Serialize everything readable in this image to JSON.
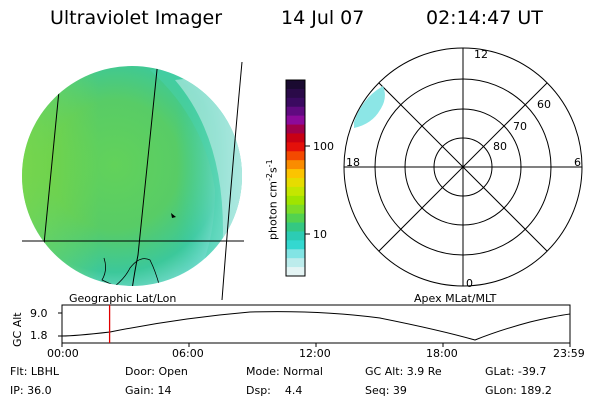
{
  "header": {
    "instrument": "Ultraviolet Imager",
    "date": "14 Jul 07",
    "time": "02:14:47 UT"
  },
  "colorbar": {
    "unit_label": "photon cm",
    "unit_exp": "-2",
    "unit_s": "s",
    "unit_s_exp": "-1",
    "tick_100": "100",
    "tick_10": "10",
    "colors": [
      "#1a0a30",
      "#2a0a48",
      "#3a0a60",
      "#600a80",
      "#8c0a9a",
      "#a0004a",
      "#c80014",
      "#e4100a",
      "#f44a00",
      "#fa8c00",
      "#fcc400",
      "#e6dc00",
      "#c4e600",
      "#a0e400",
      "#7cdc28",
      "#52d250",
      "#34c882",
      "#2cccb4",
      "#34d8d0",
      "#82e4e4",
      "#bcecec",
      "#e4f4f4"
    ]
  },
  "left_panel": {
    "caption": "Geographic Lat/Lon"
  },
  "right_panel": {
    "caption": "Apex MLat/MLT",
    "mlt_labels": {
      "top": "12",
      "left": "18",
      "right": "6",
      "bottom": "0"
    },
    "lat_labels": [
      "60",
      "70",
      "80"
    ]
  },
  "altitude_plot": {
    "ylabel": "GC Alt",
    "ytick_top": "9.0",
    "ytick_bottom": "1.8",
    "xticks": [
      "00:00",
      "06:00",
      "12:00",
      "18:00",
      "23:59"
    ],
    "current_time_marker_hour": 2.25,
    "marker_color": "#e00000"
  },
  "status": {
    "row1": {
      "flt": "Flt: LBHL",
      "door": "Door: Open",
      "mode": "Mode: Normal",
      "gcalt": "GC Alt: 3.9 Re",
      "glat": "GLat: -39.7"
    },
    "row2": {
      "ip": "IP: 36.0",
      "gain": "Gain: 14",
      "dsp": "Dsp:    4.4",
      "seq": "Seq: 39",
      "glon": "GLon: 189.2"
    }
  }
}
